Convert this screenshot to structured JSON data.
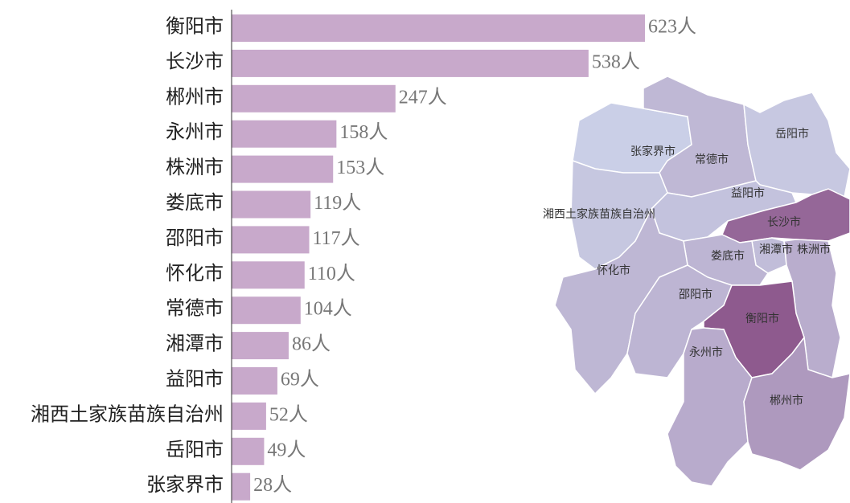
{
  "chart_data": [
    {
      "type": "bar",
      "orientation": "horizontal",
      "color": "#c8a9cb",
      "categories": [
        "衡阳市",
        "长沙市",
        "郴州市",
        "永州市",
        "株洲市",
        "娄底市",
        "邵阳市",
        "怀化市",
        "常德市",
        "湘潭市",
        "益阳市",
        "湘西土家族苗族自治州",
        "岳阳市",
        "张家界市"
      ],
      "values": [
        623,
        538,
        247,
        158,
        153,
        119,
        117,
        110,
        104,
        86,
        69,
        52,
        49,
        28
      ],
      "value_labels": [
        "623人",
        "538人",
        "247人",
        "158人",
        "153人",
        "119人",
        "117人",
        "110人",
        "104人",
        "86人",
        "69人",
        "52人",
        "49人",
        "28人"
      ]
    },
    {
      "type": "map",
      "regions": [
        "张家界市",
        "常德市",
        "岳阳市",
        "湘西土家族苗族自治州",
        "益阳市",
        "长沙市",
        "湘潭市",
        "株洲市",
        "娄底市",
        "怀化市",
        "邵阳市",
        "衡阳市",
        "永州市",
        "郴州市"
      ]
    }
  ]
}
